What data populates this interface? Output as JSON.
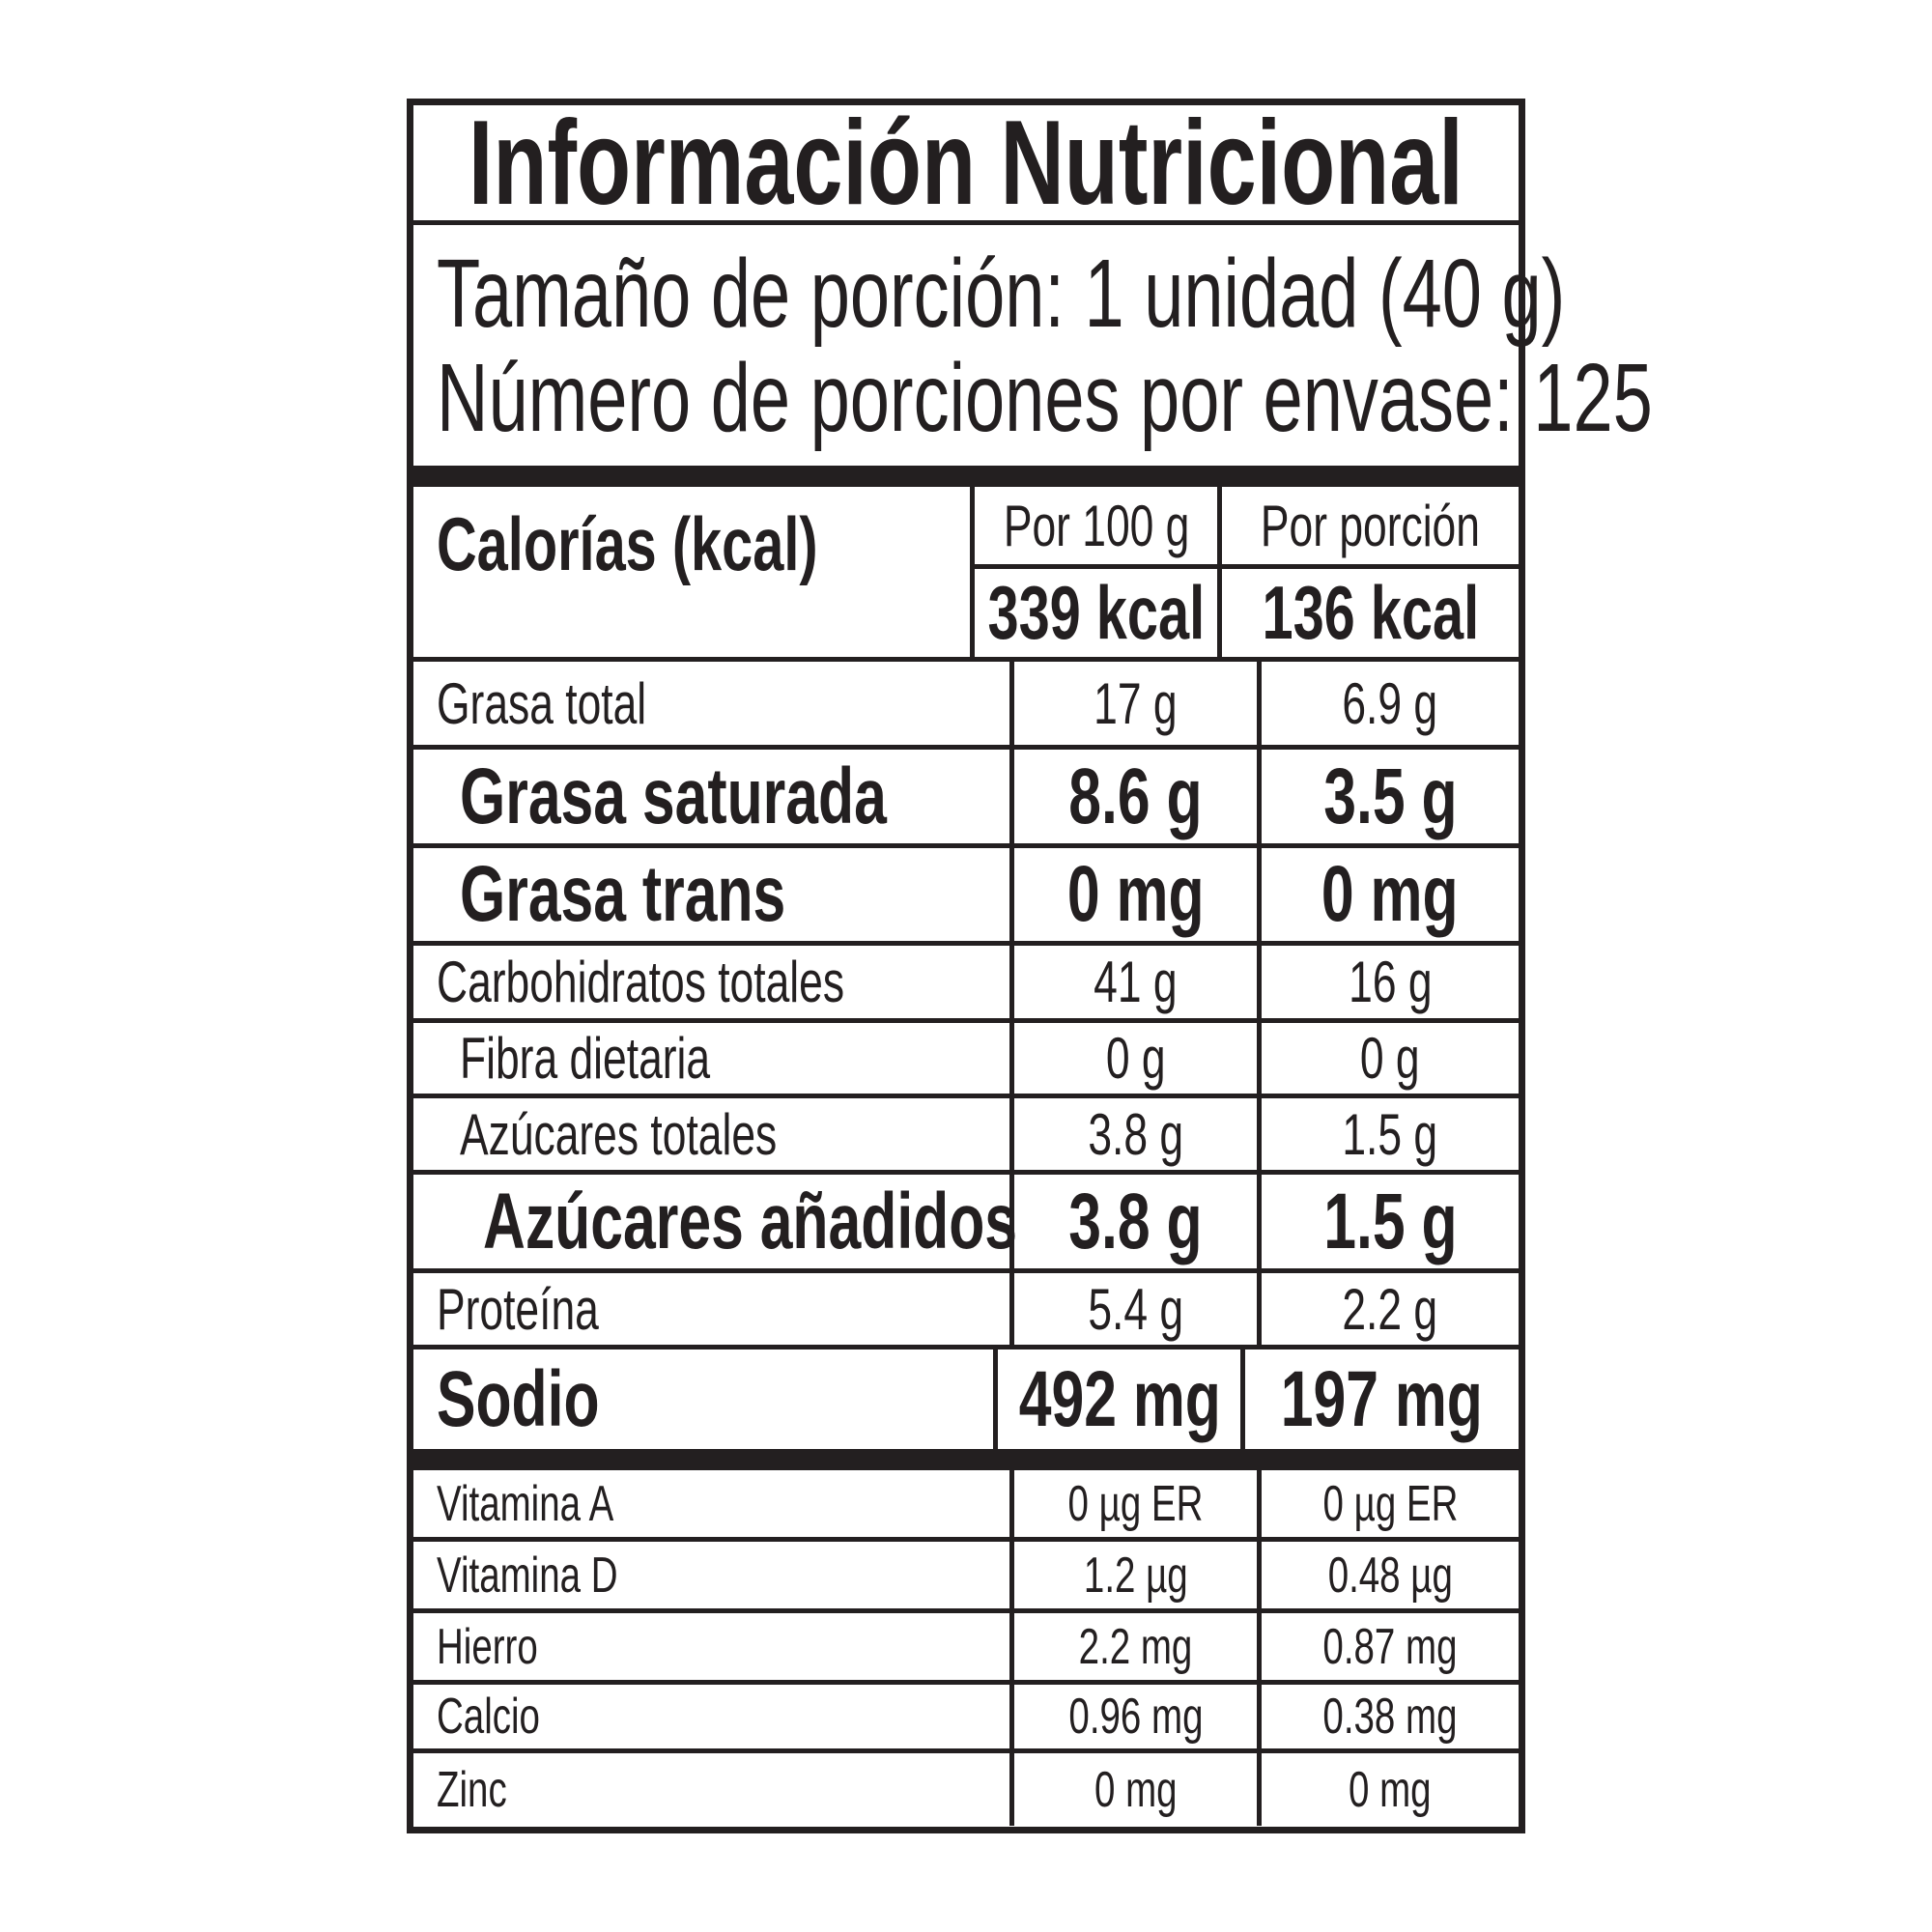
{
  "title": "Información Nutricional",
  "serving_size": "Tamaño de porción: 1 unidad (40 g)",
  "servings_per_container": "Número de porciones por envase: 125",
  "calories": {
    "label": "Calorías (kcal)",
    "col1_header": "Por 100 g",
    "col2_header": "Por porción",
    "per_100g": "339 kcal",
    "per_portion": "136 kcal"
  },
  "nutrients": [
    {
      "label": "Grasa total",
      "per_100g": "17 g",
      "per_portion": "6.9 g"
    },
    {
      "label": "Grasa saturada",
      "per_100g": "8.6 g",
      "per_portion": "3.5 g"
    },
    {
      "label": "Grasa trans",
      "per_100g": "0 mg",
      "per_portion": "0 mg"
    },
    {
      "label": "Carbohidratos totales",
      "per_100g": "41 g",
      "per_portion": "16 g"
    },
    {
      "label": "Fibra dietaria",
      "per_100g": "0 g",
      "per_portion": "0 g"
    },
    {
      "label": "Azúcares totales",
      "per_100g": "3.8 g",
      "per_portion": "1.5 g"
    },
    {
      "label": "Azúcares añadidos",
      "per_100g": "3.8 g",
      "per_portion": "1.5 g"
    },
    {
      "label": "Proteína",
      "per_100g": "5.4 g",
      "per_portion": "2.2 g"
    },
    {
      "label": "Sodio",
      "per_100g": "492 mg",
      "per_portion": "197 mg"
    }
  ],
  "micronutrients": [
    {
      "label": "Vitamina A",
      "per_100g": "0 µg ER",
      "per_portion": "0 µg ER"
    },
    {
      "label": "Vitamina D",
      "per_100g": "1.2 µg",
      "per_portion": "0.48 µg"
    },
    {
      "label": "Hierro",
      "per_100g": "2.2 mg",
      "per_portion": "0.87 mg"
    },
    {
      "label": "Calcio",
      "per_100g": "0.96 mg",
      "per_portion": "0.38 mg"
    },
    {
      "label": "Zinc",
      "per_100g": "0 mg",
      "per_portion": "0 mg"
    }
  ]
}
